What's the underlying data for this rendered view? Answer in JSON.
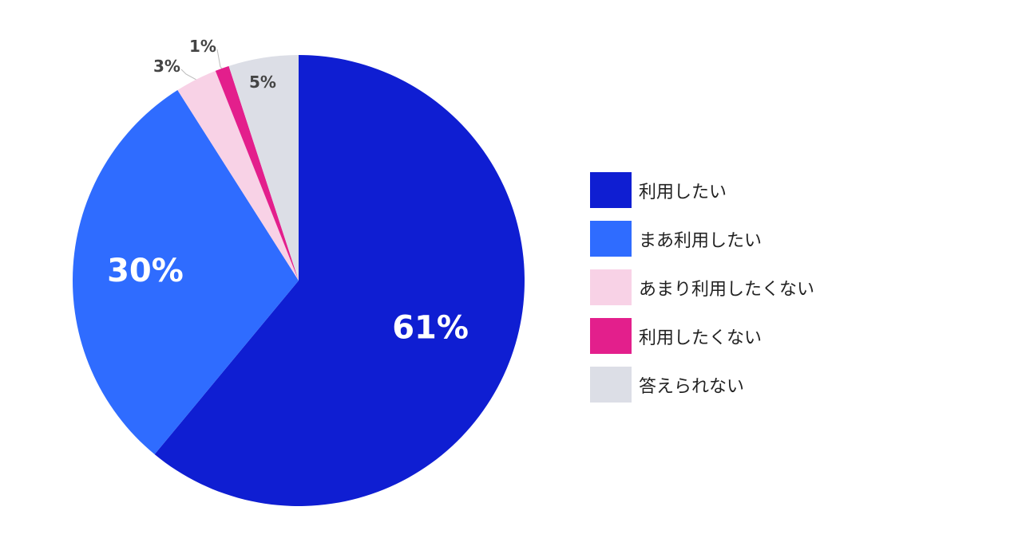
{
  "chart_data": {
    "type": "pie",
    "title": "",
    "start_angle_deg": 0,
    "direction": "clockwise",
    "slices": [
      {
        "label": "利用したい",
        "value": 61,
        "value_label": "61%",
        "color": "#0f1ed2"
      },
      {
        "label": "まあ利用したい",
        "value": 30,
        "value_label": "30%",
        "color": "#2f6cff"
      },
      {
        "label": "あまり利用したくない",
        "value": 3,
        "value_label": "3%",
        "color": "#f8d2e6"
      },
      {
        "label": "利用したくない",
        "value": 1,
        "value_label": "1%",
        "color": "#e31f8c"
      },
      {
        "label": "答えられない",
        "value": 5,
        "value_label": "5%",
        "color": "#dcdee6"
      }
    ],
    "legend_position": "right"
  }
}
